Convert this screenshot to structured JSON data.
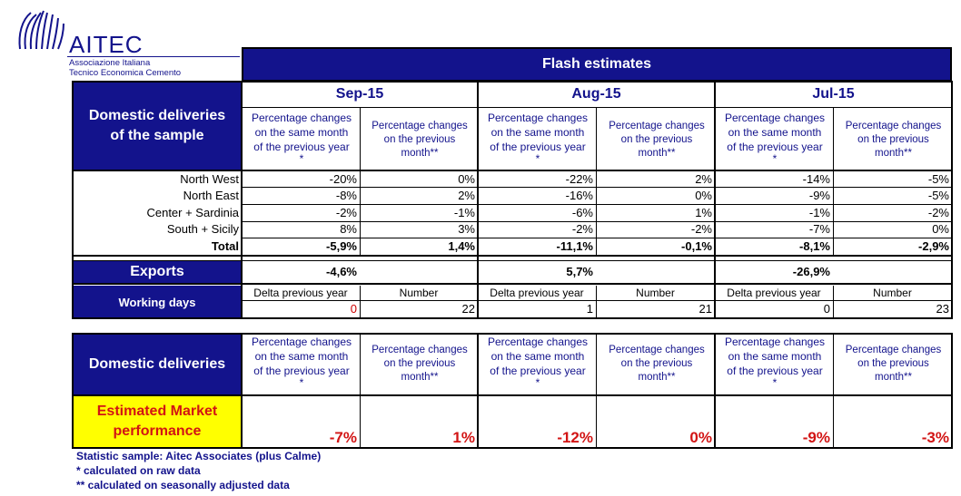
{
  "logo": {
    "name": "AITEC",
    "line1": "Associazione Italiana",
    "line2": "Tecnico Economica Cemento"
  },
  "title": "Flash estimates",
  "months": [
    "Sep-15",
    "Aug-15",
    "Jul-15"
  ],
  "col_head_a": [
    "Percentage changes",
    "on the same month",
    "of the previous year",
    "*"
  ],
  "col_head_b": [
    "Percentage changes",
    "on the previous",
    "month**"
  ],
  "domestic_sample_label": [
    "Domestic deliveries",
    "of the sample"
  ],
  "regions": [
    {
      "name": "North West",
      "values": [
        "-20%",
        "0%",
        "-22%",
        "2%",
        "-14%",
        "-5%"
      ]
    },
    {
      "name": "North East",
      "values": [
        "-8%",
        "2%",
        "-16%",
        "0%",
        "-9%",
        "-5%"
      ]
    },
    {
      "name": "Center + Sardinia",
      "values": [
        "-2%",
        "-1%",
        "-6%",
        "1%",
        "-1%",
        "-2%"
      ]
    },
    {
      "name": "South + Sicily",
      "values": [
        "8%",
        "3%",
        "-2%",
        "-2%",
        "-7%",
        "0%"
      ]
    }
  ],
  "total": {
    "name": "Total",
    "values": [
      "-5,9%",
      "1,4%",
      "-11,1%",
      "-0,1%",
      "-8,1%",
      "-2,9%"
    ]
  },
  "exports": {
    "name": "Exports",
    "values": [
      "-4,6%",
      "5,7%",
      "-26,9%"
    ]
  },
  "working_days": {
    "name": "Working days",
    "sub_a": "Delta previous year",
    "sub_b": "Number",
    "values": [
      "0",
      "22",
      "1",
      "21",
      "0",
      "23"
    ]
  },
  "domestic_deliveries_label": "Domestic deliveries",
  "market": {
    "label": [
      "Estimated Market",
      "performance"
    ],
    "values": [
      "-7%",
      "1%",
      "-12%",
      "0%",
      "-9%",
      "-3%"
    ]
  },
  "footnotes": [
    "Statistic sample: Aitec Associates (plus Calme)",
    "* calculated on raw data",
    "** calculated on seasonally adjusted data"
  ],
  "colors": {
    "navy": "#13138c",
    "yellow": "#ffff00",
    "red": "#d21414"
  }
}
